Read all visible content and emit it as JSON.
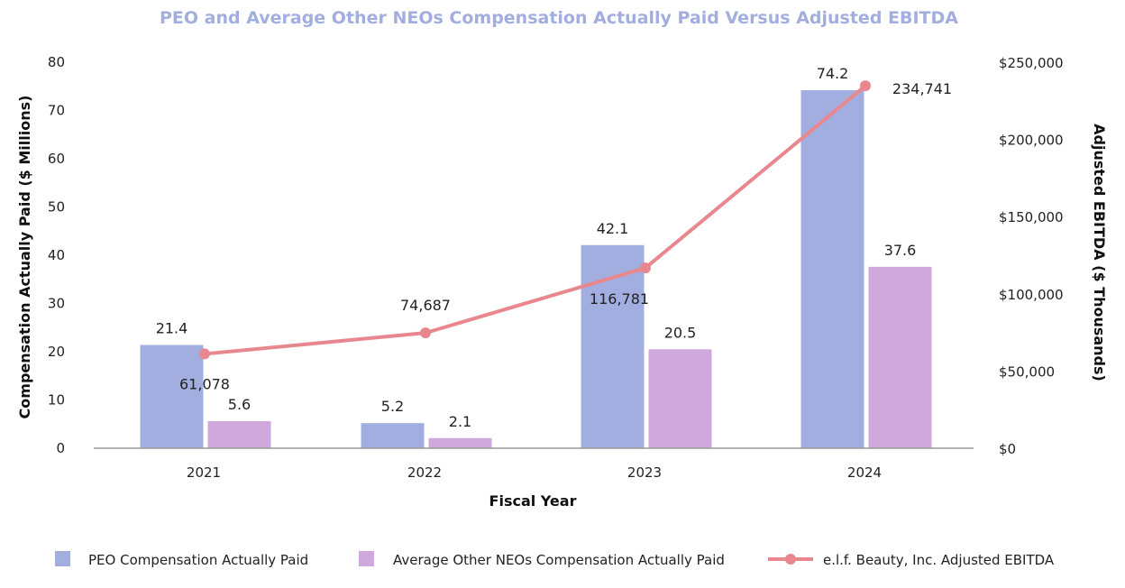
{
  "chart_data": {
    "type": "bar",
    "title": "PEO and Average Other NEOs Compensation Actually Paid Versus Adjusted EBITDA",
    "xlabel": "Fiscal Year",
    "ylabel": "Compensation Actually Paid ($ Millions)",
    "y2label": "Adjusted EBITDA ($ Thousands)",
    "categories": [
      "2021",
      "2022",
      "2023",
      "2024"
    ],
    "ylim": [
      0,
      80
    ],
    "yticks": [
      "0",
      "10",
      "20",
      "30",
      "40",
      "50",
      "60",
      "70",
      "80"
    ],
    "y2lim": [
      0,
      250000
    ],
    "y2ticks": [
      "$0",
      "$50,000",
      "$100,000",
      "$150,000",
      "$200,000",
      "$250,000"
    ],
    "series": [
      {
        "name": "PEO Compensation Actually Paid",
        "kind": "bar",
        "axis": "left",
        "color": "#a3aee0",
        "values": [
          21.4,
          5.2,
          42.1,
          74.2
        ],
        "labels": [
          "21.4",
          "5.2",
          "42.1",
          "74.2"
        ]
      },
      {
        "name": "Average Other NEOs Compensation Actually Paid",
        "kind": "bar",
        "axis": "left",
        "color": "#cfa9de",
        "values": [
          5.6,
          2.1,
          20.5,
          37.6
        ],
        "labels": [
          "5.6",
          "2.1",
          "20.5",
          "37.6"
        ]
      },
      {
        "name": "e.l.f. Beauty, Inc. Adjusted EBITDA",
        "kind": "line",
        "axis": "right",
        "color": "#e9878e",
        "values": [
          61078,
          74687,
          116781,
          234741
        ],
        "labels": [
          "61,078",
          "74,687",
          "116,781",
          "234,741"
        ]
      }
    ],
    "title_color": "#a3aee0",
    "legend_position": "bottom",
    "grid": false
  }
}
